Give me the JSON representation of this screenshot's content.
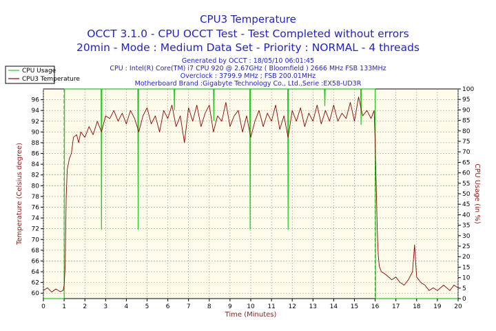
{
  "chart_data": {
    "type": "line",
    "title": "CPU3 Temperature",
    "subtitle1": "OCCT 3.1.0 - CPU OCCT Test - Test Completed without errors",
    "subtitle2": "20min - Mode : Medium Data Set - Priority : NORMAL - 4 threads",
    "info": [
      "Generated by OCCT : 18/05/10 06:01:45",
      "CPU : Intel(R) Core(TM) i7 CPU 920 @ 2.67GHz ( Bloomfield ) 2666 MHz FSB 133MHz",
      "Overclock : 3799.9 MHz ; FSB 200.01MHz",
      "Motherboard Brand :Gigabyte Technology Co., Ltd.,Serie :EX58-UD3R"
    ],
    "xlabel": "Time (Minutes)",
    "ylabel": "Temperature (Celsius degree)",
    "y2label": "CPU Usage (in %)",
    "xlim": [
      0,
      20
    ],
    "ylim": [
      59,
      98
    ],
    "y2lim": [
      0,
      100
    ],
    "xticks": [
      0,
      1,
      2,
      3,
      4,
      5,
      6,
      7,
      8,
      9,
      10,
      11,
      12,
      13,
      14,
      15,
      16,
      17,
      18,
      19,
      20
    ],
    "yticks": [
      60,
      62,
      64,
      66,
      68,
      70,
      72,
      74,
      76,
      78,
      80,
      82,
      84,
      86,
      88,
      90,
      92,
      94,
      96
    ],
    "y2ticks": [
      0,
      5,
      10,
      15,
      20,
      25,
      30,
      35,
      40,
      45,
      50,
      55,
      60,
      65,
      70,
      75,
      80,
      85,
      90,
      95,
      100
    ],
    "markers": [
      1,
      16
    ],
    "legend": [
      "CPU Usage",
      "CPU3 Temperature"
    ],
    "series": [
      {
        "name": "CPU3 Temperature",
        "axis": "left",
        "color": "#8b0000",
        "points": [
          [
            0,
            60.5
          ],
          [
            0.2,
            61.0
          ],
          [
            0.4,
            60.2
          ],
          [
            0.6,
            60.8
          ],
          [
            0.8,
            60.3
          ],
          [
            0.95,
            60.5
          ],
          [
            1.0,
            61.5
          ],
          [
            1.05,
            65
          ],
          [
            1.1,
            78
          ],
          [
            1.15,
            83
          ],
          [
            1.25,
            85
          ],
          [
            1.35,
            86
          ],
          [
            1.45,
            89
          ],
          [
            1.6,
            89.5
          ],
          [
            1.7,
            88
          ],
          [
            1.8,
            90
          ],
          [
            2.0,
            89
          ],
          [
            2.2,
            91
          ],
          [
            2.4,
            89.5
          ],
          [
            2.6,
            92
          ],
          [
            2.8,
            90
          ],
          [
            3.0,
            93
          ],
          [
            3.2,
            92.5
          ],
          [
            3.4,
            94
          ],
          [
            3.6,
            92
          ],
          [
            3.8,
            93.5
          ],
          [
            4.0,
            91.5
          ],
          [
            4.2,
            94
          ],
          [
            4.4,
            92.5
          ],
          [
            4.6,
            90
          ],
          [
            4.8,
            93
          ],
          [
            5.0,
            94.5
          ],
          [
            5.2,
            91.5
          ],
          [
            5.4,
            93
          ],
          [
            5.6,
            90
          ],
          [
            5.8,
            94
          ],
          [
            6.0,
            92.5
          ],
          [
            6.2,
            95
          ],
          [
            6.4,
            91
          ],
          [
            6.6,
            93
          ],
          [
            6.8,
            88
          ],
          [
            7.0,
            94.5
          ],
          [
            7.2,
            92
          ],
          [
            7.4,
            95
          ],
          [
            7.6,
            91
          ],
          [
            7.8,
            93.5
          ],
          [
            8.0,
            95
          ],
          [
            8.2,
            90
          ],
          [
            8.4,
            93
          ],
          [
            8.6,
            92
          ],
          [
            8.8,
            95.5
          ],
          [
            9.0,
            91
          ],
          [
            9.2,
            93
          ],
          [
            9.4,
            94
          ],
          [
            9.6,
            90
          ],
          [
            9.8,
            93
          ],
          [
            10.0,
            89
          ],
          [
            10.2,
            92
          ],
          [
            10.4,
            94
          ],
          [
            10.6,
            91
          ],
          [
            10.8,
            93.5
          ],
          [
            11.0,
            92
          ],
          [
            11.2,
            95
          ],
          [
            11.4,
            90.5
          ],
          [
            11.6,
            93
          ],
          [
            11.8,
            89
          ],
          [
            12.0,
            94
          ],
          [
            12.2,
            92
          ],
          [
            12.4,
            94.5
          ],
          [
            12.6,
            91
          ],
          [
            12.8,
            93.5
          ],
          [
            13.0,
            92
          ],
          [
            13.2,
            95
          ],
          [
            13.4,
            91.5
          ],
          [
            13.6,
            94
          ],
          [
            13.8,
            92
          ],
          [
            14.0,
            95
          ],
          [
            14.2,
            92
          ],
          [
            14.4,
            93.5
          ],
          [
            14.6,
            92.5
          ],
          [
            14.8,
            95.5
          ],
          [
            15.0,
            92
          ],
          [
            15.2,
            96.5
          ],
          [
            15.4,
            93
          ],
          [
            15.6,
            94
          ],
          [
            15.8,
            92.5
          ],
          [
            15.95,
            94
          ],
          [
            16.0,
            88
          ],
          [
            16.05,
            80
          ],
          [
            16.1,
            72
          ],
          [
            16.15,
            67
          ],
          [
            16.2,
            65
          ],
          [
            16.3,
            64
          ],
          [
            16.5,
            63.5
          ],
          [
            16.8,
            62.5
          ],
          [
            17.0,
            63
          ],
          [
            17.2,
            62
          ],
          [
            17.4,
            61.5
          ],
          [
            17.6,
            62.5
          ],
          [
            17.8,
            64
          ],
          [
            17.9,
            69
          ],
          [
            18.0,
            63
          ],
          [
            18.2,
            62
          ],
          [
            18.4,
            61.5
          ],
          [
            18.6,
            60.5
          ],
          [
            18.8,
            61
          ],
          [
            19.0,
            60.5
          ],
          [
            19.3,
            61.5
          ],
          [
            19.6,
            60.5
          ],
          [
            19.8,
            61.5
          ],
          [
            20.0,
            61
          ]
        ]
      },
      {
        "name": "CPU Usage",
        "axis": "right",
        "color": "#22cc22",
        "points": [
          [
            0,
            0
          ],
          [
            1.0,
            0
          ],
          [
            1.02,
            100
          ],
          [
            2.78,
            100
          ],
          [
            2.8,
            33
          ],
          [
            2.82,
            100
          ],
          [
            4.55,
            100
          ],
          [
            4.57,
            33
          ],
          [
            4.59,
            100
          ],
          [
            6.3,
            100
          ],
          [
            6.32,
            90
          ],
          [
            6.34,
            100
          ],
          [
            8.2,
            100
          ],
          [
            8.22,
            85
          ],
          [
            8.24,
            100
          ],
          [
            9.95,
            100
          ],
          [
            9.97,
            33
          ],
          [
            9.99,
            100
          ],
          [
            11.78,
            100
          ],
          [
            11.8,
            33
          ],
          [
            11.82,
            100
          ],
          [
            13.55,
            100
          ],
          [
            13.57,
            92
          ],
          [
            13.59,
            100
          ],
          [
            15.3,
            100
          ],
          [
            15.32,
            83
          ],
          [
            15.34,
            100
          ],
          [
            16.0,
            100
          ],
          [
            16.02,
            0
          ],
          [
            20,
            0
          ]
        ]
      }
    ]
  }
}
